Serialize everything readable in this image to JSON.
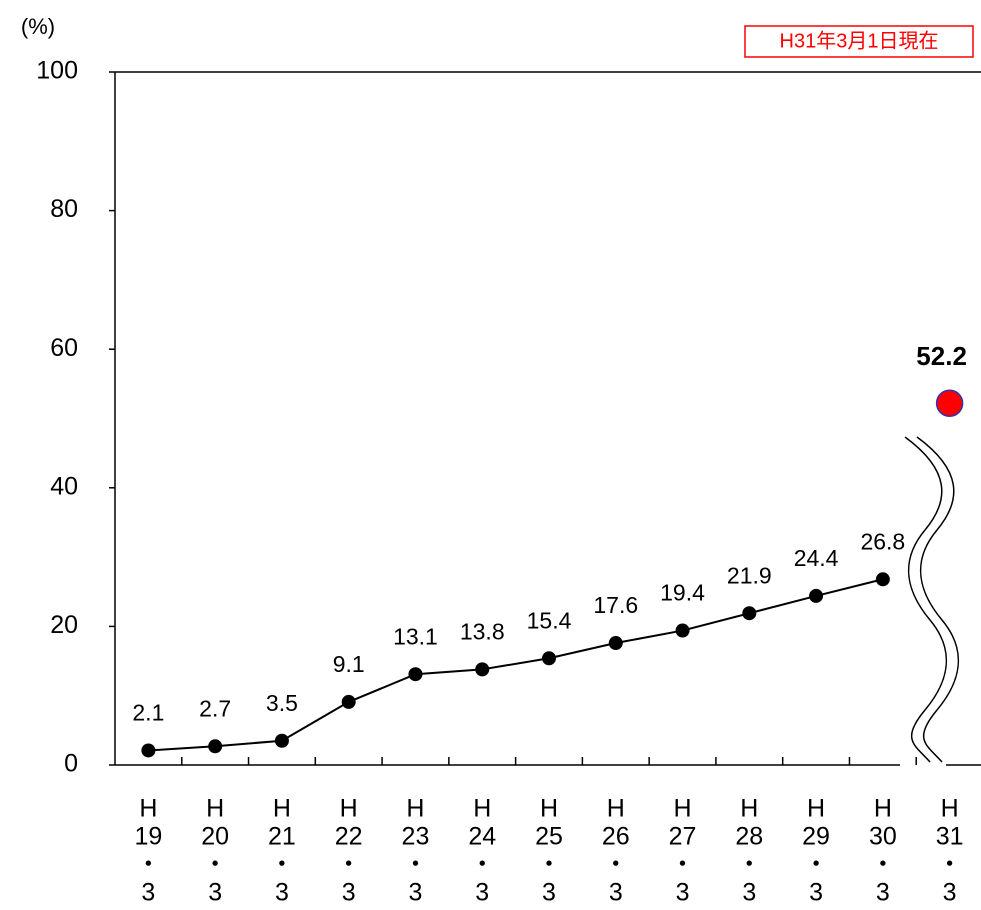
{
  "chart_data": {
    "type": "line",
    "y_unit": "(%)",
    "annotation": "H31年3月1日現在",
    "categories": [
      [
        "H",
        "19",
        "・",
        "3"
      ],
      [
        "H",
        "20",
        "・",
        "3"
      ],
      [
        "H",
        "21",
        "・",
        "3"
      ],
      [
        "H",
        "22",
        "・",
        "3"
      ],
      [
        "H",
        "23",
        "・",
        "3"
      ],
      [
        "H",
        "24",
        "・",
        "3"
      ],
      [
        "H",
        "25",
        "・",
        "3"
      ],
      [
        "H",
        "26",
        "・",
        "3"
      ],
      [
        "H",
        "27",
        "・",
        "3"
      ],
      [
        "H",
        "28",
        "・",
        "3"
      ],
      [
        "H",
        "29",
        "・",
        "3"
      ],
      [
        "H",
        "30",
        "・",
        "3"
      ],
      [
        "H",
        "31",
        "・",
        "3"
      ]
    ],
    "series": [
      {
        "color": "#000000",
        "values": [
          2.1,
          2.7,
          3.5,
          9.1,
          13.1,
          13.8,
          15.4,
          17.6,
          19.4,
          21.9,
          24.4,
          26.8,
          null
        ]
      },
      {
        "color": "#ff0000",
        "edge_color": "#3333aa",
        "bold_label": true,
        "values": [
          null,
          null,
          null,
          null,
          null,
          null,
          null,
          null,
          null,
          null,
          null,
          null,
          52.2
        ]
      }
    ],
    "ylim": [
      0,
      100
    ],
    "yticks": [
      0,
      20,
      40,
      60,
      80,
      100
    ]
  }
}
